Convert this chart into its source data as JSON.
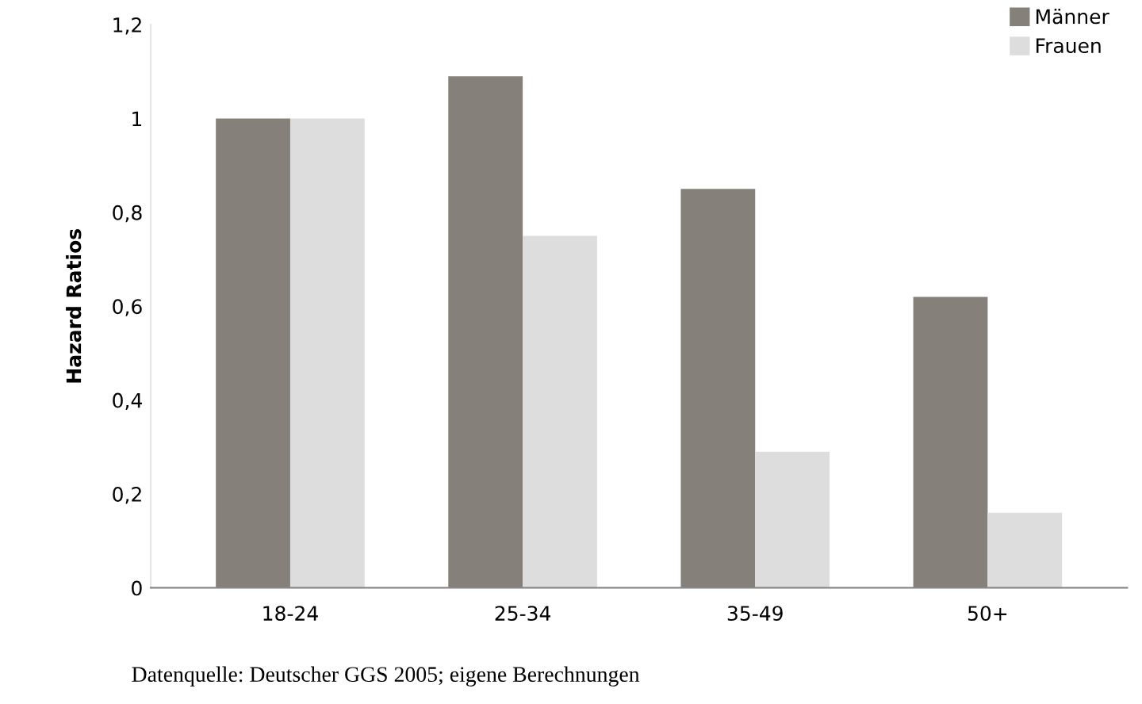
{
  "chart_data": {
    "type": "bar",
    "ylabel": "Hazard Ratios",
    "categories": [
      "18-24",
      "25-34",
      "35-49",
      "50+"
    ],
    "series": [
      {
        "name": "Männer",
        "color": "#858079",
        "values": [
          1.0,
          1.09,
          0.85,
          0.62
        ]
      },
      {
        "name": "Frauen",
        "color": "#dddddd",
        "values": [
          1.0,
          0.75,
          0.29,
          0.16
        ]
      }
    ],
    "ylim": [
      0,
      1.2
    ],
    "yticks": [
      {
        "value": 0,
        "label": "0"
      },
      {
        "value": 0.2,
        "label": "0,2"
      },
      {
        "value": 0.4,
        "label": "0,4"
      },
      {
        "value": 0.6,
        "label": "0,6"
      },
      {
        "value": 0.8,
        "label": "0,8"
      },
      {
        "value": 1,
        "label": "1"
      },
      {
        "value": 1.2,
        "label": "1,2"
      }
    ],
    "grid": false,
    "legend": "top right",
    "annotations": [
      "Datenquelle: Deutscher GGS 2005; eigene Berechnungen"
    ]
  }
}
